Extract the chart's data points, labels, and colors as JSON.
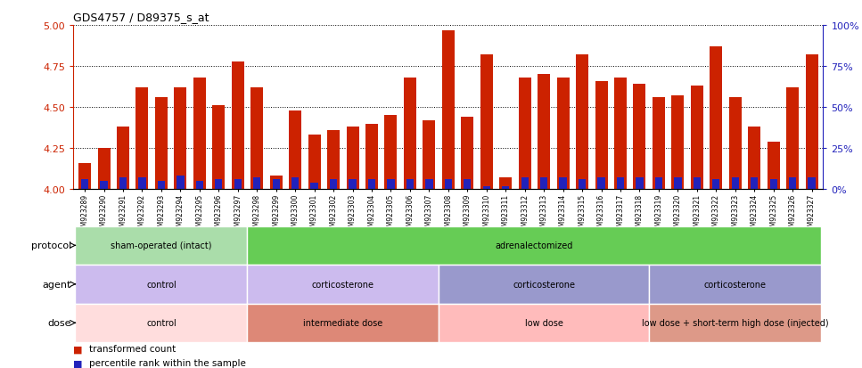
{
  "title": "GDS4757 / D89375_s_at",
  "samples": [
    "GSM923289",
    "GSM923290",
    "GSM923291",
    "GSM923292",
    "GSM923293",
    "GSM923294",
    "GSM923295",
    "GSM923296",
    "GSM923297",
    "GSM923298",
    "GSM923299",
    "GSM923300",
    "GSM923301",
    "GSM923302",
    "GSM923303",
    "GSM923304",
    "GSM923305",
    "GSM923306",
    "GSM923307",
    "GSM923308",
    "GSM923309",
    "GSM923310",
    "GSM923311",
    "GSM923312",
    "GSM923313",
    "GSM923314",
    "GSM923315",
    "GSM923316",
    "GSM923317",
    "GSM923318",
    "GSM923319",
    "GSM923320",
    "GSM923321",
    "GSM923322",
    "GSM923323",
    "GSM923324",
    "GSM923325",
    "GSM923326",
    "GSM923327"
  ],
  "red_values": [
    4.16,
    4.25,
    4.38,
    4.62,
    4.56,
    4.62,
    4.68,
    4.51,
    4.78,
    4.62,
    4.08,
    4.48,
    4.33,
    4.36,
    4.38,
    4.4,
    4.45,
    4.68,
    4.42,
    4.97,
    4.44,
    4.82,
    4.07,
    4.68,
    4.7,
    4.68,
    4.82,
    4.66,
    4.68,
    4.64,
    4.56,
    4.57,
    4.63,
    4.87,
    4.56,
    4.38,
    4.29,
    4.62,
    4.82
  ],
  "blue_values": [
    0.06,
    0.05,
    0.07,
    0.07,
    0.05,
    0.08,
    0.05,
    0.06,
    0.06,
    0.07,
    0.06,
    0.07,
    0.04,
    0.06,
    0.06,
    0.06,
    0.06,
    0.06,
    0.06,
    0.06,
    0.06,
    0.02,
    0.02,
    0.07,
    0.07,
    0.07,
    0.06,
    0.07,
    0.07,
    0.07,
    0.07,
    0.07,
    0.07,
    0.06,
    0.07,
    0.07,
    0.06,
    0.07,
    0.07
  ],
  "ylim": [
    4.0,
    5.0
  ],
  "yticks": [
    4.0,
    4.25,
    4.5,
    4.75,
    5.0
  ],
  "right_yticks": [
    0,
    25,
    50,
    75,
    100
  ],
  "bar_color_red": "#cc2200",
  "bar_color_blue": "#2222bb",
  "bar_bottom": 4.0,
  "protocol_groups": [
    {
      "label": "sham-operated (intact)",
      "start": 0,
      "end": 9,
      "color": "#aaddaa"
    },
    {
      "label": "adrenalectomized",
      "start": 9,
      "end": 39,
      "color": "#66cc55"
    }
  ],
  "agent_groups": [
    {
      "label": "control",
      "start": 0,
      "end": 9,
      "color": "#ccbbee"
    },
    {
      "label": "corticosterone",
      "start": 9,
      "end": 19,
      "color": "#ccbbee"
    },
    {
      "label": "corticosterone",
      "start": 19,
      "end": 30,
      "color": "#9999cc"
    },
    {
      "label": "corticosterone",
      "start": 30,
      "end": 39,
      "color": "#9999cc"
    }
  ],
  "dose_groups": [
    {
      "label": "control",
      "start": 0,
      "end": 9,
      "color": "#ffdddd"
    },
    {
      "label": "intermediate dose",
      "start": 9,
      "end": 19,
      "color": "#dd8877"
    },
    {
      "label": "low dose",
      "start": 19,
      "end": 30,
      "color": "#ffbbbb"
    },
    {
      "label": "low dose + short-term high dose (injected)",
      "start": 30,
      "end": 39,
      "color": "#dd9988"
    }
  ],
  "label_protocol": "protocol",
  "label_agent": "agent",
  "label_dose": "dose",
  "legend_red": "transformed count",
  "legend_blue": "percentile rank within the sample",
  "bg_color": "#ffffff",
  "right_axis_color": "#2222bb",
  "left_axis_color": "#cc2200"
}
